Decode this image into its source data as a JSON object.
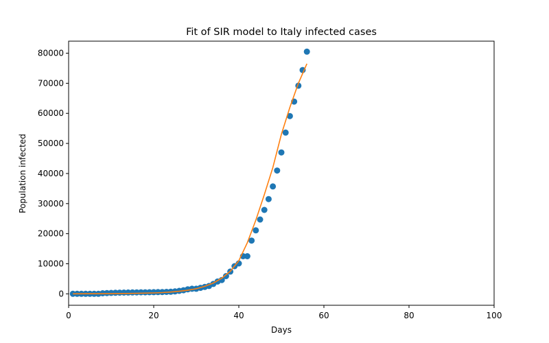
{
  "chart_data": {
    "type": "scatter",
    "title": "Fit of SIR model to Italy infected cases",
    "xlabel": "Days",
    "ylabel": "Population infected",
    "xlim": [
      0,
      100
    ],
    "ylim": [
      -3800,
      84000
    ],
    "xticks": [
      0,
      20,
      40,
      60,
      80,
      100
    ],
    "yticks": [
      0,
      10000,
      20000,
      30000,
      40000,
      50000,
      60000,
      70000,
      80000
    ],
    "grid": false,
    "series": [
      {
        "kind": "points",
        "color": "#1f77b4",
        "x": [
          1,
          2,
          3,
          4,
          5,
          6,
          7,
          8,
          9,
          10,
          11,
          12,
          13,
          14,
          15,
          16,
          17,
          18,
          19,
          20,
          21,
          22,
          23,
          24,
          25,
          26,
          27,
          28,
          29,
          30,
          31,
          32,
          33,
          34,
          35,
          36,
          37,
          38,
          39,
          40,
          41,
          42,
          43,
          44,
          45,
          46,
          47,
          48,
          49,
          50,
          51,
          52,
          53,
          54,
          55,
          56
        ],
        "y": [
          2,
          2,
          3,
          3,
          3,
          3,
          3,
          200,
          250,
          300,
          350,
          400,
          420,
          440,
          460,
          480,
          500,
          520,
          540,
          560,
          580,
          600,
          650,
          700,
          800,
          1000,
          1200,
          1500,
          1700,
          1700,
          2000,
          2300,
          2600,
          3300,
          4100,
          4600,
          5900,
          7400,
          9200,
          10100,
          12500,
          12500,
          17700,
          21100,
          24700,
          27900,
          31500,
          35700,
          41000,
          47000,
          53600,
          59100,
          63900,
          69200,
          74400,
          80500
        ]
      },
      {
        "kind": "fit",
        "color": "#ff7f0e",
        "x": [
          1,
          5,
          10,
          15,
          20,
          22,
          24,
          26,
          28,
          30,
          32,
          34,
          36,
          38,
          40,
          42,
          44,
          46,
          48,
          50,
          52,
          54,
          56
        ],
        "y": [
          0,
          20,
          60,
          140,
          300,
          420,
          600,
          850,
          1200,
          1700,
          2500,
          3600,
          5200,
          7500,
          11000,
          17000,
          24500,
          33000,
          42000,
          53000,
          62000,
          70000,
          76500
        ]
      }
    ]
  }
}
